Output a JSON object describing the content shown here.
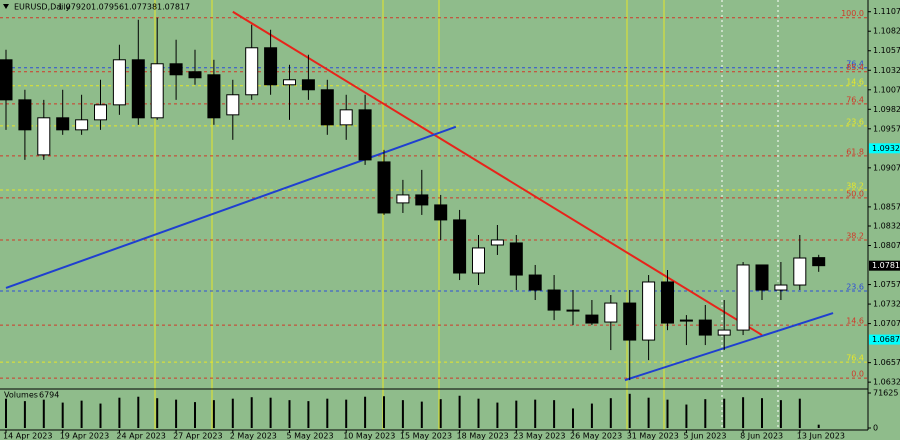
{
  "chart_data": {
    "type": "candlestick",
    "symbol": "EURUSD,Daily",
    "header_values": [
      "1.07920",
      "1.07956",
      "1.07738",
      "1.07817"
    ],
    "background": "#8fbc8b",
    "bull_color": "#ffffff",
    "bear_color": "#000000",
    "categories": [
      "14 Apr 2023",
      null,
      null,
      "19 Apr 2023",
      null,
      null,
      "24 Apr 2023",
      null,
      null,
      "27 Apr 2023",
      null,
      null,
      "2 May 2023",
      null,
      null,
      "5 May 2023",
      null,
      null,
      "10 May 2023",
      null,
      null,
      "15 May 2023",
      null,
      null,
      "18 May 2023",
      null,
      null,
      "23 May 2023",
      null,
      null,
      "26 May 2023",
      null,
      null,
      "31 May 2023",
      null,
      null,
      "5 Jun 2023",
      null,
      null,
      "8 Jun 2023",
      null,
      null,
      "13 Jun 2023",
      null
    ],
    "ohlc": {
      "open": [
        1.10454,
        1.09941,
        1.09236,
        1.09711,
        1.09557,
        1.09685,
        1.09877,
        1.10454,
        1.09711,
        1.10403,
        1.10301,
        1.10262,
        1.09749,
        1.10006,
        1.10608,
        1.10134,
        1.10198,
        1.1007,
        1.09621,
        1.09813,
        1.09146,
        1.08621,
        1.08723,
        1.08595,
        1.08403,
        1.07723,
        1.08082,
        1.08108,
        1.07697,
        1.07505,
        1.07248,
        1.07184,
        1.07095,
        1.07338,
        1.06864,
        1.07608,
        1.0712,
        1.0712,
        1.06928,
        1.06992,
        1.07826,
        1.07505,
        1.07569,
        1.0792
      ],
      "high": [
        1.10583,
        1.1007,
        1.09941,
        1.1007,
        1.10006,
        1.10198,
        1.10647,
        1.10967,
        1.10993,
        1.10711,
        1.10583,
        1.10454,
        1.10198,
        1.10903,
        1.10839,
        1.1039,
        1.10519,
        1.10198,
        1.10006,
        1.10006,
        1.093,
        1.08916,
        1.09044,
        1.08723,
        1.08531,
        1.0821,
        1.08338,
        1.0821,
        1.07826,
        1.07697,
        1.07505,
        1.07377,
        1.07441,
        1.07505,
        1.07697,
        1.07761,
        1.07184,
        1.07313,
        1.07377,
        1.07864,
        1.07826,
        1.07864,
        1.0821,
        1.07956
      ],
      "low": [
        1.09557,
        1.09172,
        1.09172,
        1.09493,
        1.09493,
        1.09557,
        1.09749,
        1.09621,
        1.09685,
        1.09941,
        1.10134,
        1.09621,
        1.09429,
        1.09941,
        1.10006,
        1.09685,
        1.09941,
        1.09493,
        1.09429,
        1.09108,
        1.08467,
        1.08492,
        1.08467,
        1.08146,
        1.07633,
        1.07569,
        1.07954,
        1.07505,
        1.07377,
        1.0712,
        1.07056,
        1.07056,
        1.06736,
        1.06351,
        1.06607,
        1.06992,
        1.068,
        1.068,
        1.06736,
        1.06928,
        1.07377,
        1.07377,
        1.07505,
        1.07738
      ],
      "close": [
        1.09941,
        1.09557,
        1.09711,
        1.09557,
        1.09685,
        1.09877,
        1.10454,
        1.09711,
        1.10403,
        1.10262,
        1.10224,
        1.09711,
        1.10006,
        1.10608,
        1.10134,
        1.10198,
        1.1007,
        1.09621,
        1.09813,
        1.09172,
        1.08492,
        1.08723,
        1.08595,
        1.08403,
        1.07723,
        1.08044,
        1.08146,
        1.07697,
        1.07505,
        1.07248,
        1.07236,
        1.07082,
        1.07338,
        1.06864,
        1.07608,
        1.07082,
        1.07108,
        1.06928,
        1.06992,
        1.07826,
        1.07505,
        1.07569,
        1.07915,
        1.07817
      ]
    },
    "ylim": [
      1.0625,
      1.1122
    ],
    "yticks": [
      {
        "value": 1.1107,
        "label": "1.11070"
      },
      {
        "value": 1.1082,
        "label": "1.10820"
      },
      {
        "value": 1.1057,
        "label": "1.10570"
      },
      {
        "value": 1.1032,
        "label": "1.10320"
      },
      {
        "value": 1.1007,
        "label": "1.10070"
      },
      {
        "value": 1.0982,
        "label": "1.09820"
      },
      {
        "value": 1.0957,
        "label": "1.09570"
      },
      {
        "value": 1.0907,
        "label": "1.09070"
      },
      {
        "value": 1.0857,
        "label": "1.08570"
      },
      {
        "value": 1.08325,
        "label": "1.08325"
      },
      {
        "value": 1.08075,
        "label": "1.08075"
      },
      {
        "value": 1.07575,
        "label": "1.07575"
      },
      {
        "value": 1.07325,
        "label": "1.07325"
      },
      {
        "value": 1.07075,
        "label": "1.07075"
      },
      {
        "value": 1.06575,
        "label": "1.06575"
      },
      {
        "value": 1.06325,
        "label": "1.06325"
      }
    ],
    "price_boxes": [
      {
        "value": 1.0932,
        "label": "1.09320",
        "color": "#00ffff"
      },
      {
        "value": 1.0687,
        "label": "1.06870",
        "color": "#00ffff"
      }
    ],
    "levels": [
      {
        "label": "100.0",
        "price": 1.10993,
        "color": "#d03a2a"
      },
      {
        "label": "76.4",
        "price": 1.10352,
        "color": "#2f4fd8"
      },
      {
        "label": "85.4",
        "price": 1.10301,
        "color": "#d03a2a"
      },
      {
        "label": "14.6",
        "price": 1.10121,
        "color": "#e6e62a"
      },
      {
        "label": "76.4",
        "price": 1.0989,
        "color": "#d03a2a"
      },
      {
        "label": "23.6",
        "price": 1.09608,
        "color": "#e6e62a"
      },
      {
        "label": "61.8",
        "price": 1.09223,
        "color": "#d03a2a"
      },
      {
        "label": "38.2",
        "price": 1.08787,
        "color": "#e6e62a"
      },
      {
        "label": "50.0",
        "price": 1.08685,
        "color": "#d03a2a"
      },
      {
        "label": "38.2",
        "price": 1.08146,
        "color": "#d03a2a"
      },
      {
        "label": "23.6",
        "price": 1.07492,
        "color": "#2f4fd8"
      },
      {
        "label": "14.6",
        "price": 1.07056,
        "color": "#d03a2a"
      },
      {
        "label": "76.4",
        "price": 1.06582,
        "color": "#e6e62a"
      },
      {
        "label": "0.0",
        "price": 1.06376,
        "color": "#d03a2a"
      }
    ],
    "trendlines": [
      {
        "from": [
          12,
          1.1107
        ],
        "to": [
          40,
          1.06928
        ],
        "color": "#e8231a"
      },
      {
        "from": [
          0,
          1.07531
        ],
        "to": [
          23.8,
          1.09595
        ],
        "color": "#1f3fd0"
      },
      {
        "from": [
          32.75,
          1.06351
        ],
        "to": [
          43.76,
          1.0721
        ],
        "color": "#1f3fd0"
      }
    ],
    "volumes": {
      "title": "Volumes",
      "color": "#000000",
      "values": [
        60000,
        55000,
        58000,
        52000,
        56000,
        50000,
        62000,
        64000,
        61000,
        58000,
        53000,
        57000,
        60000,
        63000,
        62000,
        57000,
        55000,
        60000,
        58000,
        64000,
        65000,
        57000,
        54000,
        59000,
        66000,
        60000,
        52000,
        56000,
        58000,
        57000,
        40000,
        50000,
        61000,
        70000,
        62000,
        58000,
        48000,
        59000,
        60000,
        63000,
        61000,
        57000,
        60000,
        6794
      ],
      "ylim": [
        0,
        71625
      ],
      "yticks": [
        71625,
        0
      ]
    }
  }
}
